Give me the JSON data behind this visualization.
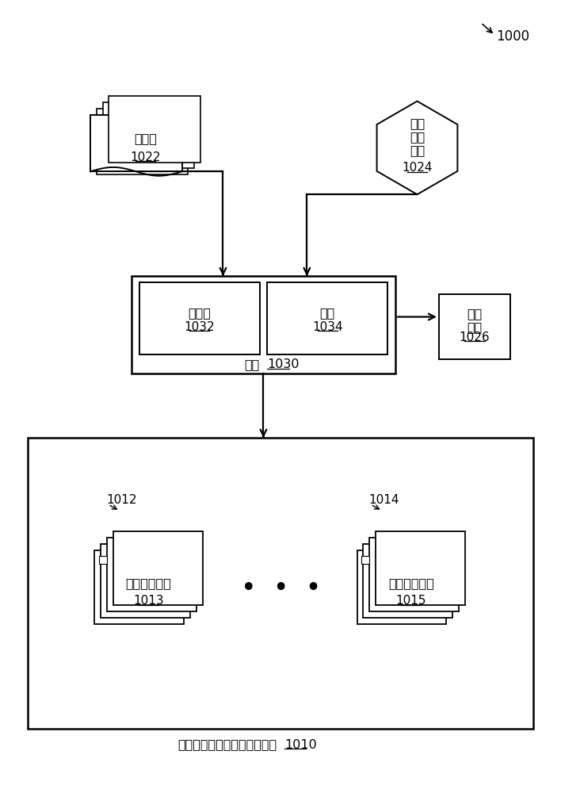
{
  "bg_color": "#ffffff",
  "label_1000": "1000",
  "label_1022_text": "源数据",
  "label_1022": "1022",
  "label_1024_text": "用户\n任务\n数据",
  "label_1024": "1024",
  "label_1026_text": "结果\n显示",
  "label_1026": "1026",
  "label_1030_text": "处理",
  "label_1030": "1030",
  "label_1032_text": "观察者",
  "label_1032": "1032",
  "label_1034_text": "查询",
  "label_1034": "1034",
  "label_1010_text": "关联记忆网络的网络中的网络",
  "label_1010": "1010",
  "label_1012": "1012",
  "label_1013_text": "关联记忆网络",
  "label_1013": "1013",
  "label_1014": "1014",
  "label_1015_text": "关联记忆网络",
  "label_1015": "1015",
  "dots_text": "•  •  •"
}
